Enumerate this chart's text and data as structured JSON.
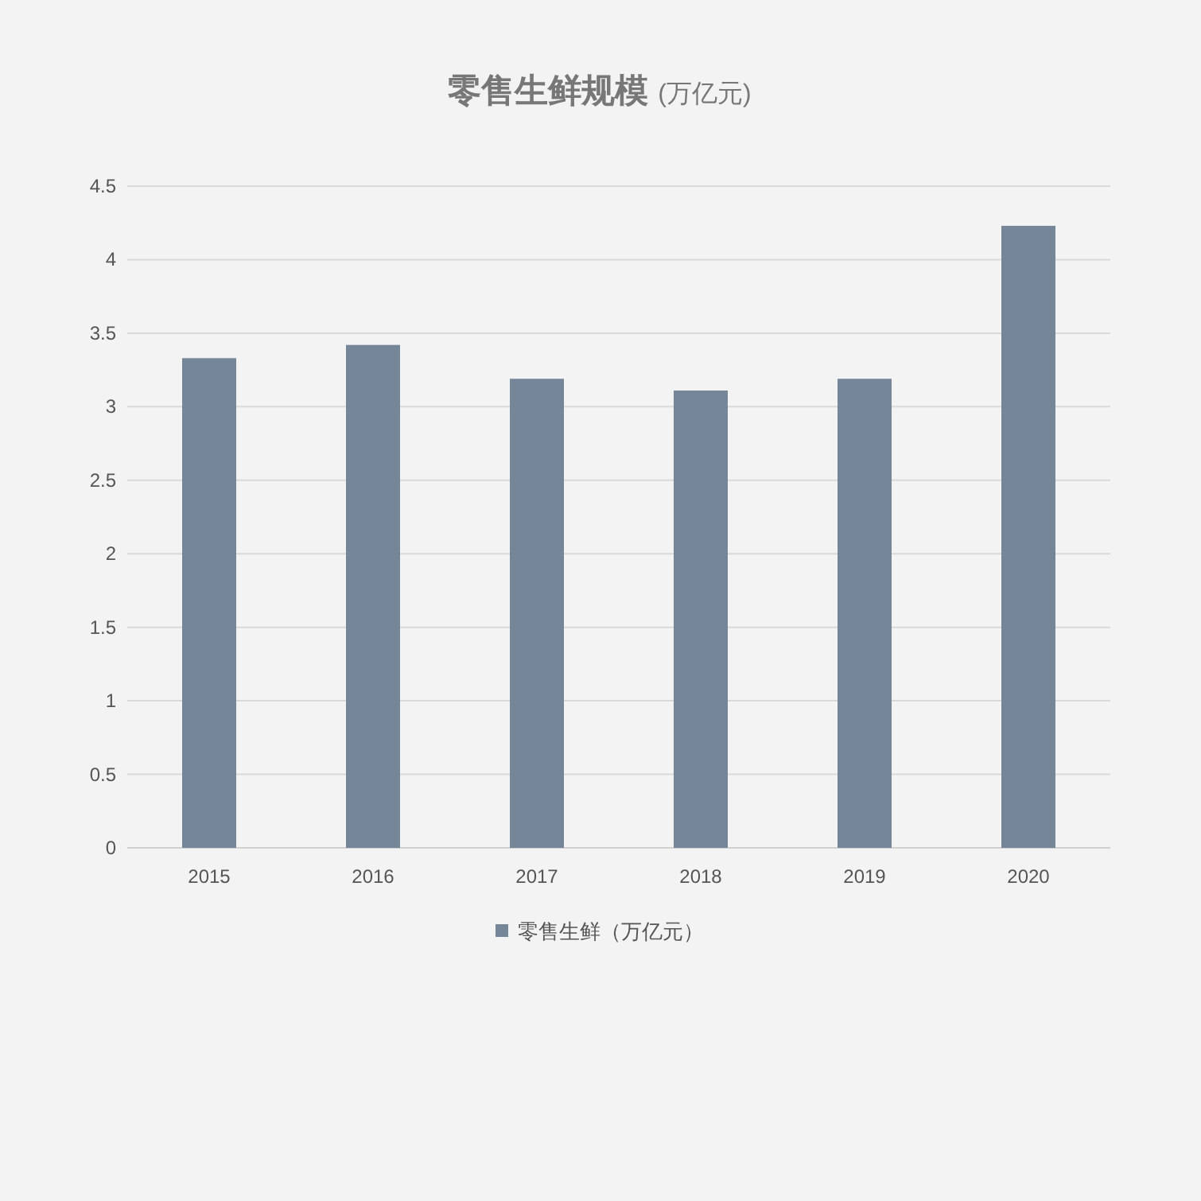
{
  "chart_data": {
    "type": "bar",
    "title": "零售生鲜规模",
    "subtitle": "(万亿元)",
    "categories": [
      "2015",
      "2016",
      "2017",
      "2018",
      "2019",
      "2020"
    ],
    "series": [
      {
        "name": "零售生鲜（万亿元）",
        "color": "#758699",
        "values": [
          3.33,
          3.42,
          3.19,
          3.11,
          3.19,
          4.23
        ]
      }
    ],
    "ylim": [
      0,
      4.5
    ],
    "yticks": [
      0,
      0.5,
      1,
      1.5,
      2,
      2.5,
      3,
      3.5,
      4,
      4.5
    ],
    "grid": "y",
    "legend": "bottom"
  }
}
